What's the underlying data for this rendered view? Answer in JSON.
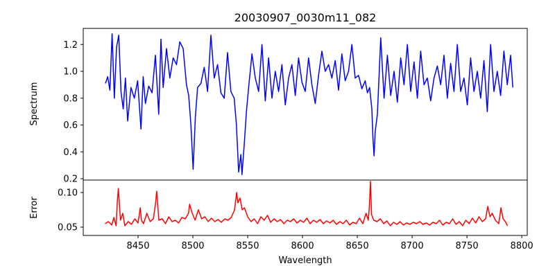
{
  "chart_data": [
    {
      "type": "line",
      "panel": "spectrum",
      "title": "20030907_0030m11_082",
      "xlabel": "",
      "ylabel": "Spectrum",
      "xlim": [
        8400,
        8800
      ],
      "ylim": [
        0.19,
        1.32
      ],
      "yticks": [
        0.2,
        0.4,
        0.6,
        0.8,
        1.0,
        1.2
      ],
      "ytick_labels": [
        "0.2",
        "0.4",
        "0.6",
        "0.8",
        "1.0",
        "1.2"
      ],
      "grid": false,
      "color": "#0000ff",
      "series": [
        {
          "x": [
            8420,
            8422,
            8424,
            8426,
            8428,
            8430,
            8432,
            8434,
            8436,
            8438,
            8440,
            8443,
            8446,
            8449,
            8452,
            8454,
            8456,
            8459,
            8462,
            8465,
            8468,
            8470,
            8472,
            8475,
            8478,
            8481,
            8484,
            8487,
            8490,
            8493,
            8495,
            8497,
            8499,
            8501,
            8503,
            8506,
            8509,
            8512,
            8515,
            8518,
            8521,
            8524,
            8527,
            8530,
            8533,
            8536,
            8538,
            8540,
            8542,
            8543,
            8545,
            8547,
            8549,
            8552,
            8555,
            8558,
            8561,
            8564,
            8567,
            8570,
            8573,
            8576,
            8579,
            8582,
            8585,
            8588,
            8591,
            8594,
            8597,
            8600,
            8603,
            8606,
            8609,
            8612,
            8615,
            8618,
            8621,
            8624,
            8627,
            8630,
            8633,
            8636,
            8639,
            8642,
            8645,
            8648,
            8651,
            8654,
            8656,
            8658,
            8660,
            8661,
            8662,
            8663,
            8665,
            8668,
            8671,
            8674,
            8677,
            8680,
            8683,
            8686,
            8689,
            8692,
            8695,
            8698,
            8701,
            8704,
            8707,
            8710,
            8713,
            8716,
            8719,
            8722,
            8725,
            8728,
            8731,
            8734,
            8737,
            8740,
            8743,
            8746,
            8749,
            8752,
            8755,
            8758,
            8761,
            8764,
            8767,
            8770,
            8773,
            8776,
            8779,
            8782,
            8785,
            8787
          ],
          "y": [
            0.91,
            0.96,
            0.86,
            1.28,
            0.8,
            1.18,
            1.27,
            0.85,
            0.72,
            0.95,
            0.63,
            0.88,
            0.8,
            0.93,
            0.57,
            0.96,
            0.76,
            0.89,
            0.84,
            1.12,
            0.68,
            1.24,
            0.88,
            1.17,
            0.95,
            1.1,
            1.05,
            1.22,
            1.17,
            0.9,
            0.82,
            0.6,
            0.27,
            0.66,
            0.88,
            0.91,
            1.03,
            0.85,
            1.27,
            0.95,
            1.05,
            0.84,
            0.8,
            1.14,
            0.85,
            0.8,
            0.6,
            0.25,
            0.38,
            0.23,
            0.45,
            0.7,
            0.88,
            1.13,
            0.95,
            0.85,
            1.2,
            0.78,
            1.1,
            0.8,
            1.0,
            0.85,
            1.05,
            0.75,
            0.95,
            1.05,
            0.82,
            1.1,
            0.92,
            0.85,
            1.1,
            0.9,
            0.76,
            0.97,
            1.15,
            1.0,
            1.05,
            0.95,
            1.08,
            0.86,
            1.13,
            0.93,
            1.0,
            1.2,
            0.95,
            0.97,
            0.87,
            0.93,
            0.84,
            0.88,
            0.72,
            0.5,
            0.37,
            0.55,
            0.68,
            1.25,
            0.8,
            1.12,
            0.82,
            1.0,
            0.77,
            1.1,
            0.9,
            1.2,
            0.85,
            1.07,
            0.8,
            1.15,
            0.9,
            0.95,
            0.78,
            0.95,
            1.04,
            0.9,
            1.12,
            0.8,
            1.06,
            0.85,
            1.2,
            0.85,
            0.95,
            0.75,
            1.1,
            0.85,
            1.0,
            0.8,
            1.08,
            0.7,
            1.2,
            0.85,
            1.0,
            0.82,
            1.15,
            0.9,
            1.12,
            0.88
          ],
          "min_points": [
            [
              8499,
              0.27
            ],
            [
              8543,
              0.23
            ],
            [
              8662,
              0.37
            ]
          ]
        }
      ]
    },
    {
      "type": "line",
      "panel": "error",
      "title": "",
      "xlabel": "Wavelength",
      "ylabel": "Error",
      "xlim": [
        8400,
        8805
      ],
      "ylim": [
        0.038,
        0.118
      ],
      "xticks": [
        8450,
        8500,
        8550,
        8600,
        8650,
        8700,
        8750,
        8800
      ],
      "xtick_labels": [
        "8450",
        "8500",
        "8550",
        "8600",
        "8650",
        "8700",
        "8750",
        "8800"
      ],
      "yticks": [
        0.05,
        0.1
      ],
      "ytick_labels": [
        "0.05",
        "0.10"
      ],
      "grid": false,
      "color": "#ff0000",
      "series": [
        {
          "x": [
            8420,
            8423,
            8426,
            8428,
            8430,
            8431,
            8432,
            8434,
            8436,
            8438,
            8441,
            8444,
            8447,
            8450,
            8452,
            8453,
            8455,
            8458,
            8461,
            8464,
            8466,
            8467,
            8469,
            8472,
            8475,
            8478,
            8481,
            8484,
            8487,
            8490,
            8493,
            8496,
            8497,
            8499,
            8502,
            8505,
            8508,
            8511,
            8514,
            8517,
            8520,
            8523,
            8526,
            8529,
            8532,
            8535,
            8538,
            8540,
            8541,
            8543,
            8545,
            8547,
            8550,
            8553,
            8556,
            8559,
            8562,
            8565,
            8568,
            8571,
            8574,
            8577,
            8580,
            8583,
            8586,
            8589,
            8592,
            8595,
            8598,
            8601,
            8604,
            8607,
            8610,
            8613,
            8616,
            8619,
            8622,
            8625,
            8628,
            8631,
            8634,
            8637,
            8640,
            8643,
            8646,
            8649,
            8652,
            8655,
            8658,
            8660,
            8661,
            8662,
            8663,
            8665,
            8668,
            8671,
            8674,
            8677,
            8680,
            8683,
            8686,
            8689,
            8692,
            8695,
            8698,
            8701,
            8704,
            8707,
            8710,
            8713,
            8716,
            8719,
            8722,
            8725,
            8728,
            8731,
            8734,
            8737,
            8740,
            8743,
            8746,
            8749,
            8752,
            8755,
            8758,
            8761,
            8764,
            8767,
            8769,
            8771,
            8773,
            8776,
            8779,
            8781,
            8783,
            8785,
            8787
          ],
          "y": [
            0.055,
            0.058,
            0.053,
            0.064,
            0.052,
            0.085,
            0.106,
            0.06,
            0.07,
            0.052,
            0.058,
            0.054,
            0.062,
            0.056,
            0.078,
            0.06,
            0.055,
            0.07,
            0.058,
            0.062,
            0.085,
            0.102,
            0.06,
            0.062,
            0.055,
            0.065,
            0.058,
            0.06,
            0.056,
            0.064,
            0.062,
            0.07,
            0.083,
            0.072,
            0.06,
            0.075,
            0.062,
            0.065,
            0.058,
            0.063,
            0.058,
            0.061,
            0.057,
            0.062,
            0.06,
            0.064,
            0.075,
            0.1,
            0.085,
            0.092,
            0.075,
            0.078,
            0.065,
            0.058,
            0.062,
            0.055,
            0.065,
            0.06,
            0.067,
            0.057,
            0.062,
            0.058,
            0.061,
            0.055,
            0.06,
            0.058,
            0.062,
            0.056,
            0.06,
            0.057,
            0.063,
            0.055,
            0.06,
            0.057,
            0.061,
            0.055,
            0.059,
            0.056,
            0.06,
            0.054,
            0.058,
            0.055,
            0.06,
            0.053,
            0.057,
            0.055,
            0.063,
            0.055,
            0.07,
            0.06,
            0.08,
            0.116,
            0.068,
            0.06,
            0.058,
            0.062,
            0.055,
            0.059,
            0.052,
            0.057,
            0.054,
            0.058,
            0.053,
            0.056,
            0.054,
            0.057,
            0.055,
            0.058,
            0.054,
            0.056,
            0.053,
            0.057,
            0.055,
            0.06,
            0.053,
            0.057,
            0.055,
            0.062,
            0.054,
            0.058,
            0.052,
            0.06,
            0.055,
            0.063,
            0.056,
            0.065,
            0.058,
            0.062,
            0.08,
            0.065,
            0.07,
            0.06,
            0.055,
            0.078,
            0.062,
            0.058,
            0.052
          ],
          "max_points": [
            [
              8432,
              0.106
            ],
            [
              8467,
              0.102
            ],
            [
              8540,
              0.1
            ],
            [
              8662,
              0.116
            ],
            [
              8769,
              0.08
            ]
          ]
        }
      ]
    }
  ]
}
